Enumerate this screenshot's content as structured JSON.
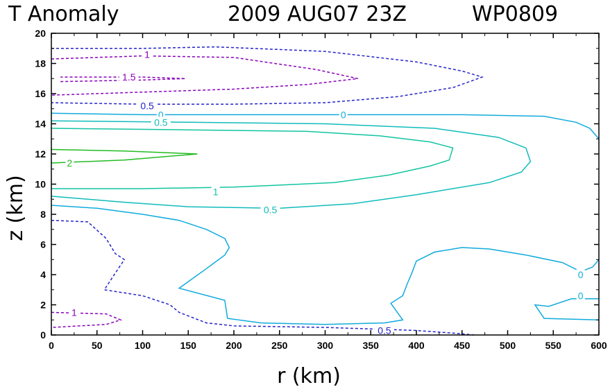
{
  "chart_data": {
    "type": "contour",
    "title": {
      "left": "T Anomaly",
      "date": "2009 AUG07 23Z",
      "storm": "WP0809"
    },
    "xlabel": "r (km)",
    "ylabel": "z (km)",
    "xlim": [
      0,
      600
    ],
    "ylim": [
      0,
      20
    ],
    "xticks": [
      0,
      50,
      100,
      150,
      200,
      250,
      300,
      350,
      400,
      450,
      500,
      550,
      600
    ],
    "yticks": [
      0,
      2,
      4,
      6,
      8,
      10,
      12,
      14,
      16,
      18,
      20
    ],
    "colors": {
      "-1.5": "#8800bb",
      "-1": "#8800bb",
      "-0.5": "#2222cc",
      "0": "#11aadd",
      "0.5": "#11bbbb",
      "1": "#11c4a0",
      "2": "#22bb22"
    },
    "contours": [
      {
        "id": "neg05-upper",
        "level": -0.5,
        "dashed": true,
        "points": [
          [
            0,
            19
          ],
          [
            100,
            19
          ],
          [
            180,
            19.1
          ],
          [
            300,
            18.8
          ],
          [
            400,
            18.1
          ],
          [
            450,
            17.5
          ],
          [
            472,
            17.1
          ],
          [
            440,
            16.4
          ],
          [
            380,
            15.8
          ],
          [
            300,
            15.4
          ],
          [
            200,
            15.3
          ],
          [
            100,
            15.3
          ],
          [
            0,
            15.4
          ]
        ],
        "labels": [
          {
            "text": "0.5",
            "x": 105,
            "y": 15.2
          }
        ]
      },
      {
        "id": "neg1-upper",
        "level": -1,
        "dashed": true,
        "points": [
          [
            0,
            18.3
          ],
          [
            100,
            18.5
          ],
          [
            200,
            18.4
          ],
          [
            290,
            17.6
          ],
          [
            336,
            17
          ],
          [
            280,
            16.6
          ],
          [
            200,
            16.3
          ],
          [
            100,
            16.1
          ],
          [
            0,
            15.9
          ]
        ],
        "labels": [
          {
            "text": "1",
            "x": 105,
            "y": 18.6
          }
        ]
      },
      {
        "id": "neg15-upper",
        "level": -1.5,
        "dashed": true,
        "points": [
          [
            10,
            16.8
          ],
          [
            100,
            16.9
          ],
          [
            147,
            17
          ],
          [
            100,
            17.1
          ],
          [
            10,
            17.1
          ]
        ],
        "labels": [
          {
            "text": "1.5",
            "x": 85,
            "y": 17.1
          }
        ]
      },
      {
        "id": "zero-upper",
        "level": 0,
        "dashed": false,
        "points": [
          [
            0,
            14.7
          ],
          [
            100,
            14.6
          ],
          [
            200,
            14.6
          ],
          [
            320,
            14.6
          ],
          [
            450,
            14.6
          ],
          [
            540,
            14.5
          ],
          [
            575,
            14.1
          ],
          [
            590,
            13.7
          ],
          [
            600,
            13
          ]
        ],
        "labels": [
          {
            "text": "0",
            "x": 120,
            "y": 14.6
          },
          {
            "text": "0",
            "x": 320,
            "y": 14.6
          }
        ]
      },
      {
        "id": "pos05-upper",
        "level": 0.5,
        "dashed": false,
        "points": [
          [
            0,
            14.2
          ],
          [
            150,
            14.1
          ],
          [
            300,
            14
          ],
          [
            420,
            13.7
          ],
          [
            490,
            13.1
          ],
          [
            520,
            12.4
          ],
          [
            525,
            11.5
          ],
          [
            515,
            10.8
          ],
          [
            480,
            10.1
          ],
          [
            400,
            9.3
          ],
          [
            330,
            8.7
          ],
          [
            250,
            8.4
          ],
          [
            150,
            8.5
          ],
          [
            80,
            8.8
          ],
          [
            0,
            9.2
          ]
        ],
        "labels": [
          {
            "text": "0.5",
            "x": 120,
            "y": 14.1
          },
          {
            "text": "0.5",
            "x": 240,
            "y": 8.3
          }
        ]
      },
      {
        "id": "pos1-upper",
        "level": 1,
        "dashed": false,
        "points": [
          [
            0,
            13.7
          ],
          [
            150,
            13.6
          ],
          [
            280,
            13.5
          ],
          [
            360,
            13.2
          ],
          [
            415,
            12.8
          ],
          [
            440,
            12.4
          ],
          [
            436,
            11.6
          ],
          [
            415,
            11.2
          ],
          [
            370,
            10.6
          ],
          [
            310,
            10.1
          ],
          [
            200,
            9.8
          ],
          [
            100,
            9.7
          ],
          [
            0,
            9.7
          ]
        ],
        "labels": [
          {
            "text": "1",
            "x": 180,
            "y": 9.5
          }
        ]
      },
      {
        "id": "pos2-upper",
        "level": 2,
        "dashed": false,
        "points": [
          [
            0,
            12.3
          ],
          [
            80,
            12.2
          ],
          [
            160,
            12
          ],
          [
            80,
            11.6
          ],
          [
            0,
            11.4
          ]
        ],
        "labels": [
          {
            "text": "2",
            "x": 20,
            "y": 11.4
          }
        ]
      },
      {
        "id": "zero-lower-main",
        "level": 0,
        "dashed": false,
        "points": [
          [
            0,
            8.6
          ],
          [
            50,
            8.4
          ],
          [
            100,
            8
          ],
          [
            140,
            7.6
          ],
          [
            170,
            7
          ],
          [
            190,
            6.4
          ],
          [
            195,
            5.8
          ],
          [
            190,
            5.3
          ],
          [
            170,
            4.4
          ],
          [
            140,
            3.1
          ],
          [
            190,
            2.3
          ],
          [
            193,
            1.1
          ],
          [
            230,
            0.8
          ],
          [
            300,
            0.7
          ],
          [
            365,
            0.8
          ],
          [
            385,
            1
          ],
          [
            372,
            2.1
          ],
          [
            385,
            2.6
          ],
          [
            390,
            3.4
          ],
          [
            395,
            4.1
          ],
          [
            400,
            4.9
          ],
          [
            420,
            5.5
          ],
          [
            450,
            5.8
          ],
          [
            480,
            5.7
          ],
          [
            520,
            5.3
          ],
          [
            560,
            4.8
          ],
          [
            580,
            4.2
          ],
          [
            593,
            4.5
          ],
          [
            600,
            5
          ]
        ],
        "labels": [
          {
            "text": "0",
            "x": 580,
            "y": 4
          }
        ]
      },
      {
        "id": "zero-lower-small",
        "level": 0,
        "dashed": false,
        "points": [
          [
            600,
            2.4
          ],
          [
            570,
            2.4
          ],
          [
            545,
            1.9
          ],
          [
            530,
            2
          ],
          [
            540,
            1.1
          ],
          [
            600,
            1
          ]
        ],
        "labels": [
          {
            "text": "0",
            "x": 580,
            "y": 2.6
          }
        ]
      },
      {
        "id": "neg05-lower",
        "level": -0.5,
        "dashed": true,
        "points": [
          [
            0,
            7.6
          ],
          [
            40,
            7.5
          ],
          [
            60,
            6.4
          ],
          [
            70,
            5.4
          ],
          [
            80,
            5
          ],
          [
            70,
            4.1
          ],
          [
            58,
            3
          ],
          [
            100,
            2.6
          ],
          [
            130,
            2
          ],
          [
            140,
            1.5
          ],
          [
            170,
            0.8
          ],
          [
            200,
            0.6
          ],
          [
            300,
            0.5
          ],
          [
            350,
            0.4
          ],
          [
            400,
            0.3
          ],
          [
            445,
            0.1
          ],
          [
            463,
            0
          ]
        ],
        "labels": [
          {
            "text": "0.5",
            "x": 365,
            "y": 0.3
          }
        ]
      },
      {
        "id": "neg1-lower",
        "level": -1,
        "dashed": true,
        "points": [
          [
            0,
            1.5
          ],
          [
            60,
            1.4
          ],
          [
            76,
            1
          ],
          [
            60,
            0.7
          ],
          [
            0,
            0.5
          ]
        ],
        "labels": [
          {
            "text": "1",
            "x": 25,
            "y": 1.5
          }
        ]
      }
    ]
  }
}
